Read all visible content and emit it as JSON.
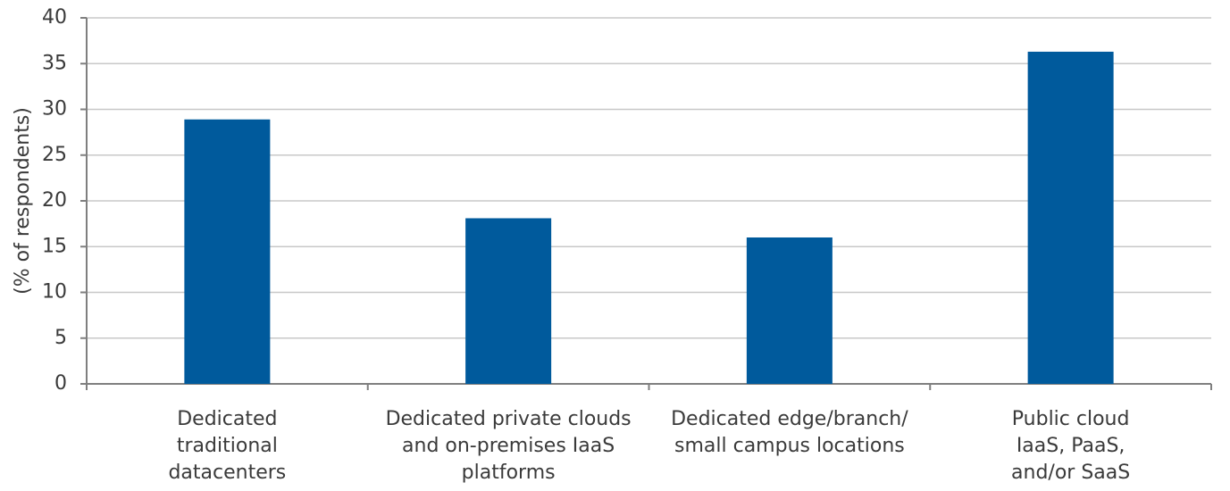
{
  "chart_data": {
    "type": "bar",
    "y_axis_label": "(% of respondents)",
    "categories": [
      "Dedicated\ntraditional\ndatacenters",
      "Dedicated private clouds\nand on-premises IaaS\nplatforms",
      "Dedicated edge/branch/\nsmall campus locations",
      "Public cloud\nIaaS, PaaS,\nand/or SaaS"
    ],
    "values": [
      28.9,
      18.1,
      16.0,
      36.3
    ],
    "color": "#005a9c",
    "ylim": [
      0,
      40
    ],
    "yticks": [
      0,
      5,
      10,
      15,
      20,
      25,
      30,
      35,
      40
    ],
    "grid": true
  }
}
